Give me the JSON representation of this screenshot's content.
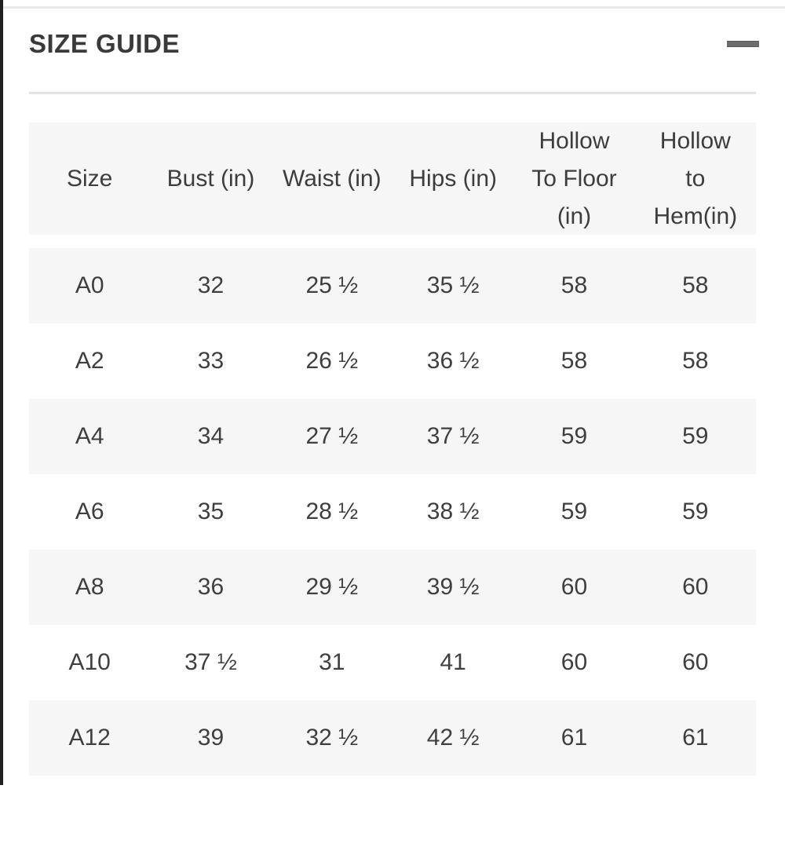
{
  "panel": {
    "title": "SIZE GUIDE",
    "collapse_icon": "minus"
  },
  "table": {
    "columns": [
      "Size",
      "Bust (in)",
      "Waist (in)",
      "Hips (in)",
      "Hollow To Floor (in)",
      "Hollow to Hem(in)"
    ],
    "rows": [
      [
        "A0",
        "32",
        "25 ½",
        "35 ½",
        "58",
        "58"
      ],
      [
        "A2",
        "33",
        "26 ½",
        "36 ½",
        "58",
        "58"
      ],
      [
        "A4",
        "34",
        "27 ½",
        "37 ½",
        "59",
        "59"
      ],
      [
        "A6",
        "35",
        "28 ½",
        "38 ½",
        "59",
        "59"
      ],
      [
        "A8",
        "36",
        "29 ½",
        "39 ½",
        "60",
        "60"
      ],
      [
        "A10",
        "37 ½",
        "31",
        "41",
        "60",
        "60"
      ],
      [
        "A12",
        "39",
        "32 ½",
        "42 ½",
        "61",
        "61"
      ]
    ],
    "next_row_partially_visible": true
  },
  "colors": {
    "row_stripe": "#f6f6f6",
    "left_border": "#1f1f1f",
    "divider": "#e4e4e4",
    "text": "#3d3d3d",
    "icon": "#6d6d6d"
  }
}
